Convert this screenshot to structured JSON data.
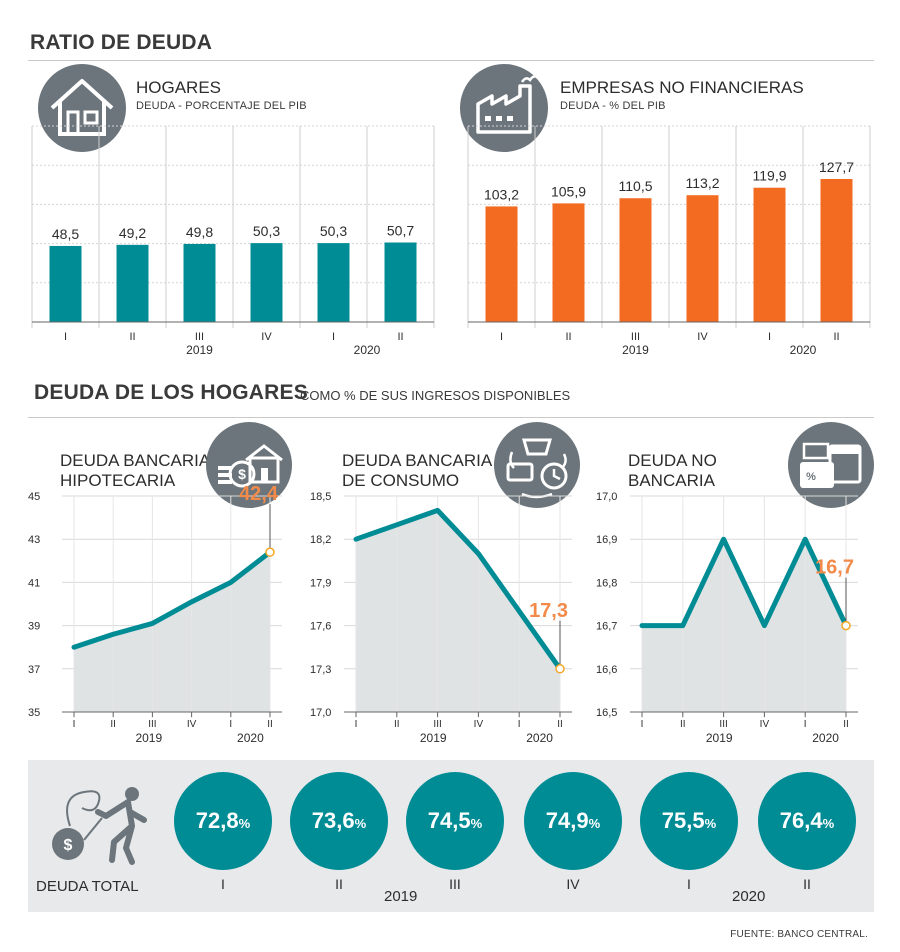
{
  "header": {
    "title": "RATIO DE DEUDA"
  },
  "section2": {
    "title": "DEUDA DE LOS HOGARES",
    "subtitle": "COMO % DE SUS INGRESOS DISPONIBLES"
  },
  "colors": {
    "teal": "#008c95",
    "orange": "#f26b21",
    "gray_icon": "#6c757b",
    "area": "#dfe3e4",
    "band": "#e7e9ea"
  },
  "icons": [
    "house-icon",
    "factory-icon",
    "mortgage-icon",
    "shopping-icon",
    "wallet-calendar-icon",
    "debtor-icon"
  ],
  "footer": {
    "total_label": "DEUDA TOTAL",
    "source": "FUENTE: BANCO CENTRAL."
  },
  "chart_data": [
    {
      "id": "hogares",
      "type": "bar",
      "title": "HOGARES",
      "subtitle": "DEUDA - PORCENTAJE DEL PIB",
      "categories": [
        "I",
        "II",
        "III",
        "IV",
        "I",
        "II"
      ],
      "years": [
        "2019",
        "2020"
      ],
      "values": [
        48.5,
        49.2,
        49.8,
        50.3,
        50.3,
        50.7
      ],
      "labels": [
        "48,5",
        "49,2",
        "49,8",
        "50,3",
        "50,3",
        "50,7"
      ],
      "ylim": [
        0,
        125
      ],
      "color": "#008c95"
    },
    {
      "id": "empresas",
      "type": "bar",
      "title": "EMPRESAS NO FINANCIERAS",
      "subtitle": "DEUDA - % DEL PIB",
      "categories": [
        "I",
        "II",
        "III",
        "IV",
        "I",
        "II"
      ],
      "years": [
        "2019",
        "2020"
      ],
      "values": [
        103.2,
        105.9,
        110.5,
        113.2,
        119.9,
        127.7
      ],
      "labels": [
        "103,2",
        "105,9",
        "110,5",
        "113,2",
        "119,9",
        "127,7"
      ],
      "ylim": [
        0,
        175
      ],
      "color": "#f26b21"
    },
    {
      "id": "hipotecaria",
      "type": "area",
      "title": "DEUDA BANCARIA HIPOTECARIA",
      "title_lines": [
        "DEUDA BANCARIA",
        "HIPOTECARIA"
      ],
      "categories": [
        "I",
        "II",
        "III",
        "IV",
        "I",
        "II"
      ],
      "years": [
        "2019",
        "2020"
      ],
      "values": [
        38.0,
        38.6,
        39.1,
        40.1,
        41.0,
        42.4
      ],
      "yticks": [
        "35",
        "37",
        "39",
        "41",
        "43",
        "45"
      ],
      "ylim": [
        35,
        45
      ],
      "last_label": "42,4"
    },
    {
      "id": "consumo",
      "type": "area",
      "title": "DEUDA BANCARIA DE CONSUMO",
      "title_lines": [
        "DEUDA BANCARIA",
        "DE CONSUMO"
      ],
      "categories": [
        "I",
        "II",
        "III",
        "IV",
        "I",
        "II"
      ],
      "years": [
        "2019",
        "2020"
      ],
      "values": [
        18.2,
        18.3,
        18.4,
        18.1,
        17.7,
        17.3
      ],
      "yticks": [
        "17,0",
        "17,3",
        "17,6",
        "17,9",
        "18,2",
        "18,5"
      ],
      "ylim": [
        17.0,
        18.5
      ],
      "last_label": "17,3"
    },
    {
      "id": "no-bancaria",
      "type": "area",
      "title": "DEUDA NO BANCARIA",
      "title_lines": [
        "DEUDA NO",
        "BANCARIA"
      ],
      "categories": [
        "I",
        "II",
        "III",
        "IV",
        "I",
        "II"
      ],
      "years": [
        "2019",
        "2020"
      ],
      "values": [
        16.7,
        16.7,
        16.9,
        16.7,
        16.9,
        16.7
      ],
      "yticks": [
        "16,5",
        "16,6",
        "16,7",
        "16,8",
        "16,9",
        "17,0"
      ],
      "ylim": [
        16.5,
        17.0
      ],
      "last_label": "16,7"
    },
    {
      "id": "deuda-total",
      "type": "bubble",
      "title": "DEUDA TOTAL",
      "categories": [
        "I",
        "II",
        "III",
        "IV",
        "I",
        "II"
      ],
      "years": [
        "2019",
        "2020"
      ],
      "values": [
        72.8,
        73.6,
        74.5,
        74.9,
        75.5,
        76.4
      ],
      "labels": [
        "72,8",
        "73,6",
        "74,5",
        "74,9",
        "75,5",
        "76,4"
      ],
      "unit": "%"
    }
  ]
}
